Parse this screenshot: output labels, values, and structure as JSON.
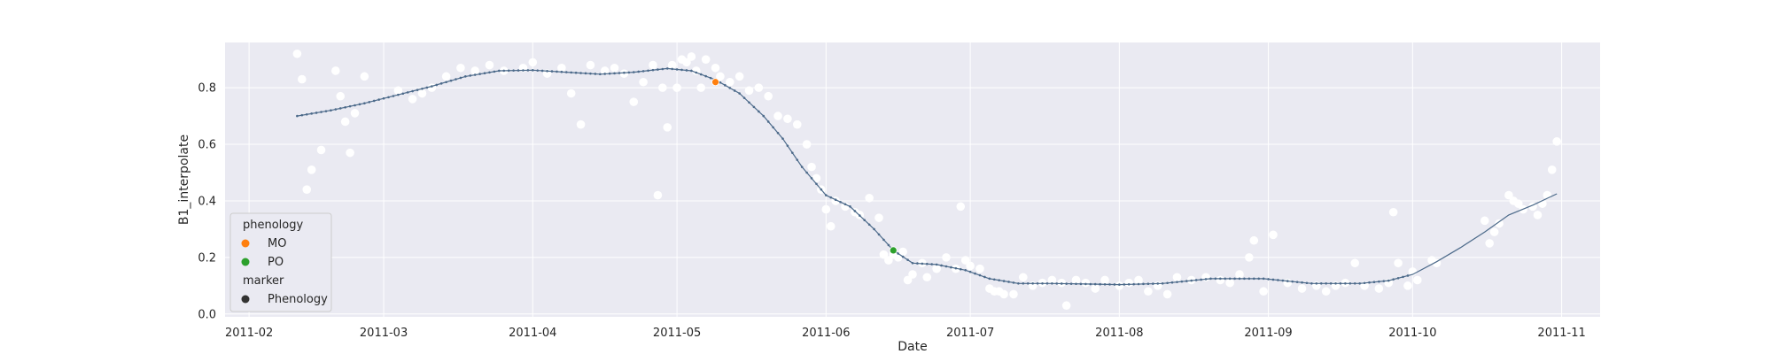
{
  "chart_data": {
    "type": "scatter",
    "title": "",
    "xlabel": "Date",
    "ylabel": "B1_interpolate",
    "xlim": [
      "2011-01-27",
      "2011-11-09"
    ],
    "ylim": [
      -0.01,
      0.96
    ],
    "grid": true,
    "x_ticks": [
      "2011-02-01",
      "2011-03-01",
      "2011-04-01",
      "2011-05-01",
      "2011-06-01",
      "2011-07-01",
      "2011-08-01",
      "2011-09-01",
      "2011-10-01",
      "2011-11-01"
    ],
    "x_tick_labels": [
      "2011-02",
      "2011-03",
      "2011-04",
      "2011-05",
      "2011-06",
      "2011-07",
      "2011-08",
      "2011-09",
      "2011-10",
      "2011-11"
    ],
    "y_ticks": [
      0.0,
      0.2,
      0.4,
      0.6,
      0.8
    ],
    "y_tick_labels": [
      "0.0",
      "0.2",
      "0.4",
      "0.6",
      "0.8"
    ],
    "legend": {
      "placement": "lower-left",
      "title": "phenology",
      "entries": [
        {
          "label": "MO",
          "color": "#ff7f0e"
        },
        {
          "label": "PO",
          "color": "#2ca02c"
        }
      ],
      "marker_title": "marker",
      "marker_entries": [
        {
          "label": "Phenology",
          "color": "#333333"
        }
      ]
    },
    "colors": {
      "background": "#eaeaf2",
      "grid": "#ffffff",
      "observations": "#ffffff",
      "smoothed_line": "#4c6a8a"
    },
    "series": [
      {
        "kind": "observed-scatter",
        "points": [
          [
            "2011-02-11",
            0.92
          ],
          [
            "2011-02-12",
            0.83
          ],
          [
            "2011-02-13",
            0.44
          ],
          [
            "2011-02-14",
            0.51
          ],
          [
            "2011-02-16",
            0.58
          ],
          [
            "2011-02-19",
            0.86
          ],
          [
            "2011-02-20",
            0.77
          ],
          [
            "2011-02-21",
            0.68
          ],
          [
            "2011-02-22",
            0.57
          ],
          [
            "2011-02-23",
            0.71
          ],
          [
            "2011-02-25",
            0.84
          ],
          [
            "2011-03-04",
            0.79
          ],
          [
            "2011-03-07",
            0.76
          ],
          [
            "2011-03-09",
            0.78
          ],
          [
            "2011-03-11",
            0.8
          ],
          [
            "2011-03-14",
            0.84
          ],
          [
            "2011-03-17",
            0.87
          ],
          [
            "2011-03-20",
            0.86
          ],
          [
            "2011-03-23",
            0.88
          ],
          [
            "2011-03-26",
            0.86
          ],
          [
            "2011-03-30",
            0.87
          ],
          [
            "2011-04-01",
            0.89
          ],
          [
            "2011-04-04",
            0.85
          ],
          [
            "2011-04-07",
            0.87
          ],
          [
            "2011-04-09",
            0.78
          ],
          [
            "2011-04-11",
            0.67
          ],
          [
            "2011-04-13",
            0.88
          ],
          [
            "2011-04-16",
            0.86
          ],
          [
            "2011-04-18",
            0.87
          ],
          [
            "2011-04-20",
            0.85
          ],
          [
            "2011-04-22",
            0.75
          ],
          [
            "2011-04-24",
            0.82
          ],
          [
            "2011-04-26",
            0.88
          ],
          [
            "2011-04-27",
            0.42
          ],
          [
            "2011-04-28",
            0.8
          ],
          [
            "2011-04-29",
            0.66
          ],
          [
            "2011-04-30",
            0.88
          ],
          [
            "2011-05-01",
            0.8
          ],
          [
            "2011-05-02",
            0.9
          ],
          [
            "2011-05-03",
            0.89
          ],
          [
            "2011-05-04",
            0.91
          ],
          [
            "2011-05-05",
            0.86
          ],
          [
            "2011-05-06",
            0.8
          ],
          [
            "2011-05-07",
            0.9
          ],
          [
            "2011-05-09",
            0.87
          ],
          [
            "2011-05-10",
            0.84
          ],
          [
            "2011-05-12",
            0.82
          ],
          [
            "2011-05-14",
            0.84
          ],
          [
            "2011-05-16",
            0.79
          ],
          [
            "2011-05-18",
            0.8
          ],
          [
            "2011-05-20",
            0.77
          ],
          [
            "2011-05-22",
            0.7
          ],
          [
            "2011-05-24",
            0.69
          ],
          [
            "2011-05-26",
            0.67
          ],
          [
            "2011-05-28",
            0.6
          ],
          [
            "2011-05-29",
            0.52
          ],
          [
            "2011-05-30",
            0.48
          ],
          [
            "2011-05-31",
            0.44
          ],
          [
            "2011-06-01",
            0.37
          ],
          [
            "2011-06-02",
            0.31
          ],
          [
            "2011-06-03",
            0.4
          ],
          [
            "2011-06-05",
            0.38
          ],
          [
            "2011-06-07",
            0.36
          ],
          [
            "2011-06-08",
            0.35
          ],
          [
            "2011-06-10",
            0.41
          ],
          [
            "2011-06-12",
            0.34
          ],
          [
            "2011-06-13",
            0.21
          ],
          [
            "2011-06-14",
            0.19
          ],
          [
            "2011-06-15",
            0.21
          ],
          [
            "2011-06-16",
            0.2
          ],
          [
            "2011-06-17",
            0.22
          ],
          [
            "2011-06-18",
            0.12
          ],
          [
            "2011-06-19",
            0.14
          ],
          [
            "2011-06-21",
            0.18
          ],
          [
            "2011-06-22",
            0.13
          ],
          [
            "2011-06-24",
            0.16
          ],
          [
            "2011-06-26",
            0.2
          ],
          [
            "2011-06-28",
            0.16
          ],
          [
            "2011-06-29",
            0.38
          ],
          [
            "2011-06-30",
            0.19
          ],
          [
            "2011-07-01",
            0.17
          ],
          [
            "2011-07-03",
            0.16
          ],
          [
            "2011-07-05",
            0.09
          ],
          [
            "2011-07-06",
            0.08
          ],
          [
            "2011-07-07",
            0.08
          ],
          [
            "2011-07-08",
            0.07
          ],
          [
            "2011-07-10",
            0.07
          ],
          [
            "2011-07-12",
            0.13
          ],
          [
            "2011-07-14",
            0.1
          ],
          [
            "2011-07-16",
            0.11
          ],
          [
            "2011-07-18",
            0.12
          ],
          [
            "2011-07-20",
            0.11
          ],
          [
            "2011-07-21",
            0.03
          ],
          [
            "2011-07-23",
            0.12
          ],
          [
            "2011-07-25",
            0.11
          ],
          [
            "2011-07-27",
            0.09
          ],
          [
            "2011-07-29",
            0.12
          ],
          [
            "2011-08-01",
            0.1
          ],
          [
            "2011-08-03",
            0.11
          ],
          [
            "2011-08-05",
            0.12
          ],
          [
            "2011-08-07",
            0.08
          ],
          [
            "2011-08-09",
            0.1
          ],
          [
            "2011-08-11",
            0.07
          ],
          [
            "2011-08-13",
            0.13
          ],
          [
            "2011-08-16",
            0.12
          ],
          [
            "2011-08-19",
            0.13
          ],
          [
            "2011-08-22",
            0.12
          ],
          [
            "2011-08-24",
            0.11
          ],
          [
            "2011-08-26",
            0.14
          ],
          [
            "2011-08-28",
            0.2
          ],
          [
            "2011-08-29",
            0.26
          ],
          [
            "2011-08-31",
            0.08
          ],
          [
            "2011-09-02",
            0.28
          ],
          [
            "2011-09-05",
            0.11
          ],
          [
            "2011-09-08",
            0.09
          ],
          [
            "2011-09-11",
            0.1
          ],
          [
            "2011-09-13",
            0.08
          ],
          [
            "2011-09-15",
            0.1
          ],
          [
            "2011-09-17",
            0.11
          ],
          [
            "2011-09-19",
            0.18
          ],
          [
            "2011-09-21",
            0.1
          ],
          [
            "2011-09-24",
            0.09
          ],
          [
            "2011-09-26",
            0.11
          ],
          [
            "2011-09-27",
            0.36
          ],
          [
            "2011-09-28",
            0.18
          ],
          [
            "2011-09-30",
            0.1
          ],
          [
            "2011-10-01",
            0.15
          ],
          [
            "2011-10-02",
            0.12
          ],
          [
            "2011-10-05",
            0.19
          ],
          [
            "2011-10-06",
            0.18
          ],
          [
            "2011-10-16",
            0.33
          ],
          [
            "2011-10-17",
            0.25
          ],
          [
            "2011-10-18",
            0.29
          ],
          [
            "2011-10-19",
            0.32
          ],
          [
            "2011-10-21",
            0.42
          ],
          [
            "2011-10-22",
            0.4
          ],
          [
            "2011-10-23",
            0.39
          ],
          [
            "2011-10-24",
            0.37
          ],
          [
            "2011-10-26",
            0.38
          ],
          [
            "2011-10-27",
            0.35
          ],
          [
            "2011-10-28",
            0.39
          ],
          [
            "2011-10-29",
            0.42
          ],
          [
            "2011-10-30",
            0.51
          ],
          [
            "2011-10-31",
            0.61
          ]
        ]
      },
      {
        "kind": "smoothed-line",
        "points": [
          [
            "2011-02-11",
            0.7
          ],
          [
            "2011-02-18",
            0.72
          ],
          [
            "2011-02-25",
            0.745
          ],
          [
            "2011-03-04",
            0.775
          ],
          [
            "2011-03-11",
            0.805
          ],
          [
            "2011-03-18",
            0.84
          ],
          [
            "2011-03-25",
            0.86
          ],
          [
            "2011-04-01",
            0.862
          ],
          [
            "2011-04-08",
            0.855
          ],
          [
            "2011-04-15",
            0.848
          ],
          [
            "2011-04-22",
            0.855
          ],
          [
            "2011-04-29",
            0.868
          ],
          [
            "2011-05-04",
            0.86
          ],
          [
            "2011-05-09",
            0.828
          ],
          [
            "2011-05-14",
            0.78
          ],
          [
            "2011-05-19",
            0.7
          ],
          [
            "2011-05-23",
            0.62
          ],
          [
            "2011-05-27",
            0.52
          ],
          [
            "2011-06-01",
            0.42
          ],
          [
            "2011-06-06",
            0.38
          ],
          [
            "2011-06-11",
            0.3
          ],
          [
            "2011-06-15",
            0.225
          ],
          [
            "2011-06-19",
            0.18
          ],
          [
            "2011-06-24",
            0.175
          ],
          [
            "2011-06-30",
            0.155
          ],
          [
            "2011-07-05",
            0.125
          ],
          [
            "2011-07-11",
            0.108
          ],
          [
            "2011-07-18",
            0.108
          ],
          [
            "2011-07-25",
            0.106
          ],
          [
            "2011-08-01",
            0.104
          ],
          [
            "2011-08-10",
            0.108
          ],
          [
            "2011-08-20",
            0.125
          ],
          [
            "2011-08-31",
            0.125
          ],
          [
            "2011-09-10",
            0.108
          ],
          [
            "2011-09-20",
            0.108
          ],
          [
            "2011-09-26",
            0.118
          ],
          [
            "2011-10-01",
            0.14
          ],
          [
            "2011-10-06",
            0.185
          ],
          [
            "2011-10-11",
            0.235
          ],
          [
            "2011-10-16",
            0.29
          ],
          [
            "2011-10-21",
            0.35
          ],
          [
            "2011-10-26",
            0.385
          ],
          [
            "2011-10-31",
            0.425
          ]
        ]
      },
      {
        "kind": "phenology",
        "points": [
          {
            "label": "MO",
            "date": "2011-05-09",
            "value": 0.82
          },
          {
            "label": "PO",
            "date": "2011-06-15",
            "value": 0.225
          }
        ]
      }
    ]
  }
}
